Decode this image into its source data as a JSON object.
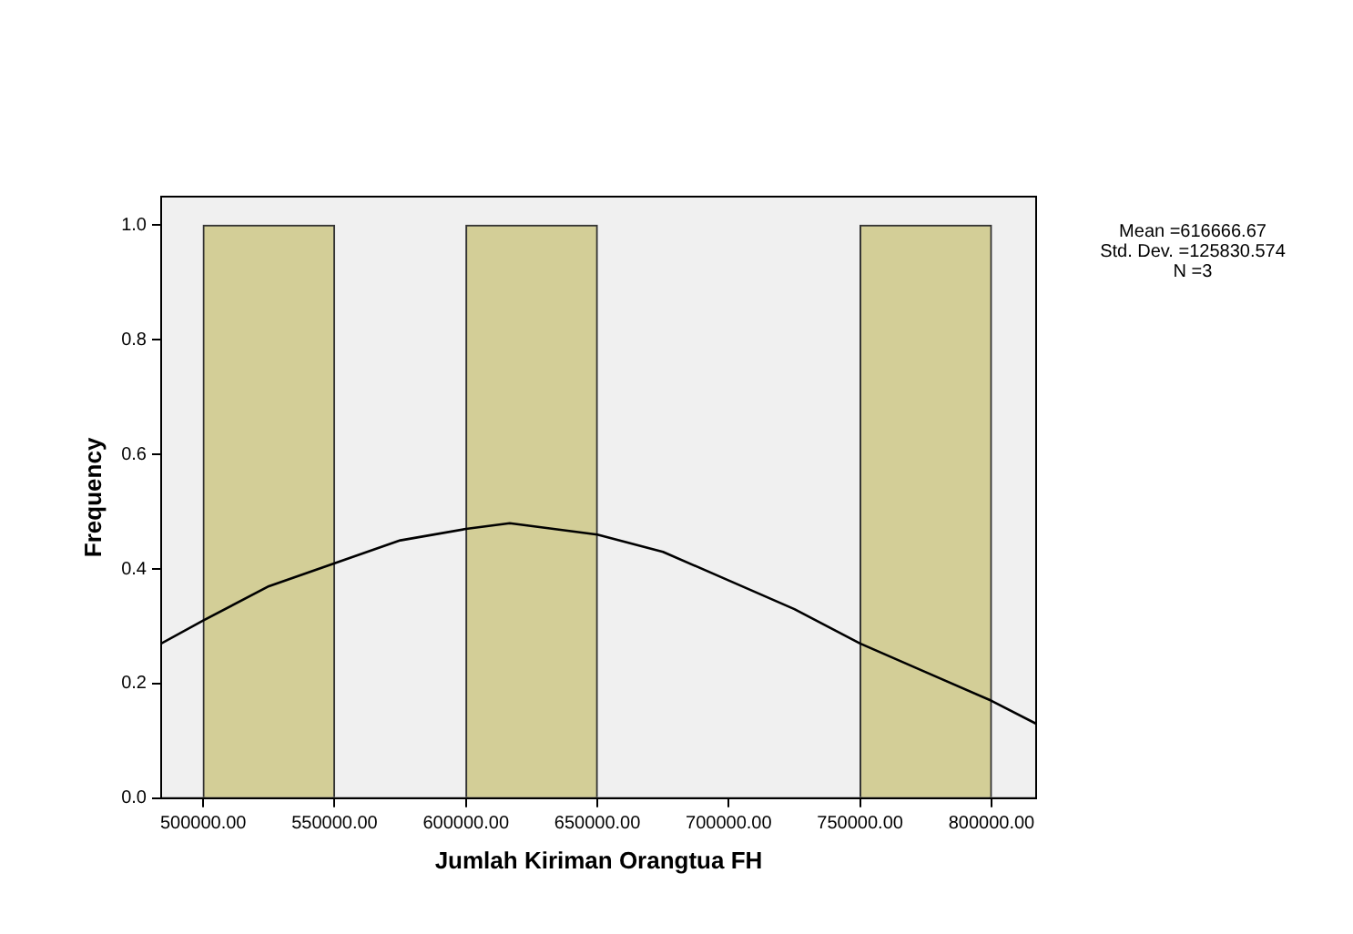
{
  "chart_data": {
    "type": "histogram",
    "xlabel": "Jumlah Kiriman Orangtua FH",
    "ylabel": "Frequency",
    "bins": [
      500000,
      550000,
      600000,
      650000,
      700000,
      750000,
      800000
    ],
    "values": [
      1,
      0,
      1,
      0,
      0,
      1
    ],
    "color": "#d3ce97",
    "series": [
      {
        "type": "line",
        "color": "#000000",
        "x": [
          484000,
          500000,
          525000,
          550000,
          575000,
          600000,
          616667,
          650000,
          675000,
          700000,
          725000,
          750000,
          775000,
          800000,
          817000
        ],
        "values": [
          0.27,
          0.31,
          0.37,
          0.41,
          0.45,
          0.47,
          0.48,
          0.46,
          0.43,
          0.38,
          0.33,
          0.27,
          0.22,
          0.17,
          0.13
        ]
      }
    ],
    "xlim": [
      484000,
      817000
    ],
    "xticks": [
      {
        "value": 500000,
        "label": "500000.00"
      },
      {
        "value": 550000,
        "label": "550000.00"
      },
      {
        "value": 600000,
        "label": "600000.00"
      },
      {
        "value": 650000,
        "label": "650000.00"
      },
      {
        "value": 700000,
        "label": "700000.00"
      },
      {
        "value": 750000,
        "label": "750000.00"
      },
      {
        "value": 800000,
        "label": "800000.00"
      }
    ],
    "ylim": [
      0,
      1.05
    ],
    "yticks": [
      {
        "value": 0,
        "label": "0.0"
      },
      {
        "value": 0.2,
        "label": "0.2"
      },
      {
        "value": 0.4,
        "label": "0.4"
      },
      {
        "value": 0.6,
        "label": "0.6"
      },
      {
        "value": 0.8,
        "label": "0.8"
      },
      {
        "value": 1,
        "label": "1.0"
      }
    ],
    "annotations": [
      "Mean =616666.67",
      "Std. Dev. =125830.574",
      "N =3"
    ],
    "legend": false,
    "marker": "none",
    "line_style": "solid"
  }
}
